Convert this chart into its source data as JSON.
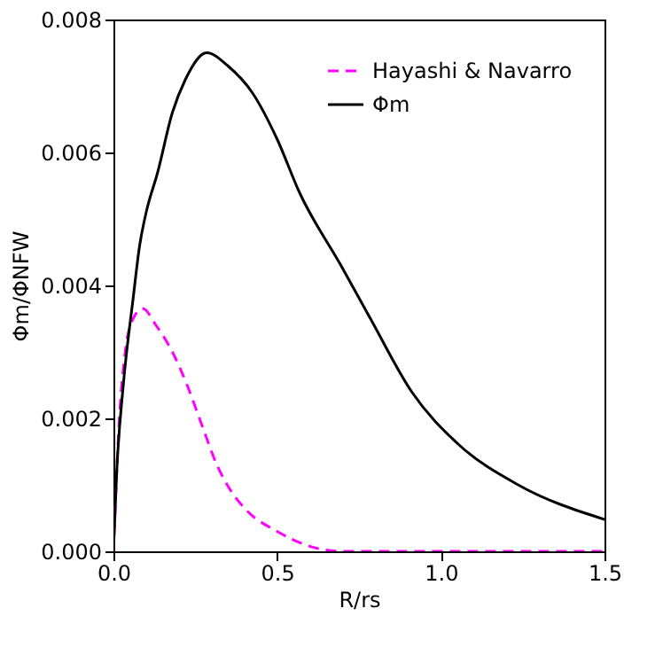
{
  "chart_data": {
    "type": "line",
    "xlabel": "R/rs",
    "ylabel": "Φm/ΦNFW",
    "xlim": [
      0,
      1.5
    ],
    "ylim": [
      0,
      0.008
    ],
    "xticks": [
      {
        "value": 0,
        "label": "0.0"
      },
      0.5,
      {
        "value": 1,
        "label": "1.0"
      },
      1.5
    ],
    "yticks": [
      {
        "value": 0,
        "label": "0.000"
      },
      {
        "value": 0.002,
        "label": "0.002"
      },
      {
        "value": 0.004,
        "label": "0.004"
      },
      {
        "value": 0.006,
        "label": "0.006"
      },
      {
        "value": 0.008,
        "label": "0.008"
      }
    ],
    "legend": "top right",
    "grid": false,
    "series": [
      {
        "name": "Hayashi & Navarro",
        "color": "#ff00ff",
        "line_style": "dashed",
        "x": [
          0,
          0.018,
          0.036,
          0.06,
          0.09,
          0.13,
          0.18,
          0.225,
          0.27,
          0.316,
          0.36,
          0.41,
          0.5,
          0.585,
          0.7,
          0.8,
          1.0,
          1.5
        ],
        "values": [
          0,
          0.002,
          0.003,
          0.0035,
          0.00365,
          0.0034,
          0.003,
          0.0025,
          0.0019,
          0.0013,
          0.0009,
          0.0006,
          0.0003,
          0.0001,
          0,
          0,
          0,
          0
        ]
      },
      {
        "name": "Φm",
        "color": "#000000",
        "line_style": "solid",
        "x": [
          0,
          0.01,
          0.03,
          0.06,
          0.08,
          0.1,
          0.135,
          0.18,
          0.22,
          0.285,
          0.35,
          0.424,
          0.5,
          0.568,
          0.695,
          0.785,
          0.911,
          1.056,
          1.236,
          1.5
        ],
        "values": [
          0,
          0.0012,
          0.0025,
          0.0038,
          0.0046,
          0.0051,
          0.0057,
          0.0066,
          0.0071,
          0.0075,
          0.0073,
          0.0069,
          0.0062,
          0.0054,
          0.0043,
          0.0035,
          0.0024,
          0.0016,
          0.001,
          0.00048
        ]
      }
    ]
  }
}
